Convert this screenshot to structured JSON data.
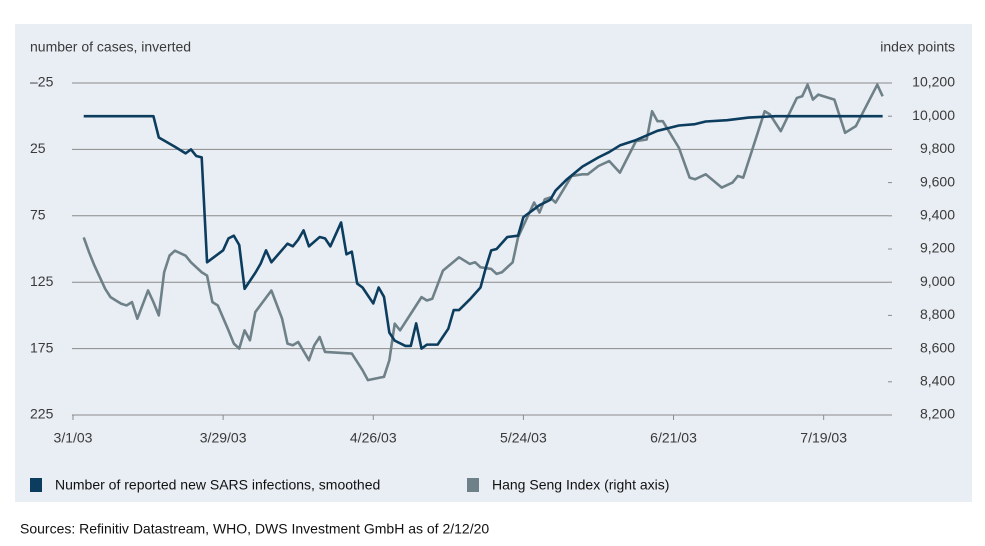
{
  "chart_data": {
    "type": "line",
    "y_label": "number of cases, inverted",
    "y2_label": "index points",
    "source": "Sources: Refinitiv Datastream, WHO, DWS Investment GmbH as of 2/12/20",
    "xlim": [
      "2003-03-01",
      "2003-07-31"
    ],
    "xticks": [
      {
        "value": "2003-03-01",
        "label": "3/1/03"
      },
      {
        "value": "2003-03-29",
        "label": "3/29/03"
      },
      {
        "value": "2003-04-26",
        "label": "4/26/03"
      },
      {
        "value": "2003-05-24",
        "label": "5/24/03"
      },
      {
        "value": "2003-06-21",
        "label": "6/21/03"
      },
      {
        "value": "2003-07-19",
        "label": "7/19/03"
      }
    ],
    "ylim": [
      225,
      -25
    ],
    "yticks": [
      {
        "value": -25,
        "label": "–25"
      },
      25,
      75,
      125,
      175,
      225
    ],
    "y2lim": [
      8200,
      10200
    ],
    "y2ticks": [
      {
        "value": 8200,
        "label": "8,200"
      },
      {
        "value": 8400,
        "label": "8,400"
      },
      {
        "value": 8600,
        "label": "8,600"
      },
      {
        "value": 8800,
        "label": "8,800"
      },
      {
        "value": 9000,
        "label": "9,000"
      },
      {
        "value": 9200,
        "label": "9,200"
      },
      {
        "value": 9400,
        "label": "9,400"
      },
      {
        "value": 9600,
        "label": "9,600"
      },
      {
        "value": 9800,
        "label": "9,800"
      },
      {
        "value": 10000,
        "label": "10,000"
      },
      {
        "value": 10200,
        "label": "10,200"
      }
    ],
    "grid": true,
    "series": [
      {
        "name": "Number of reported new SARS infections, smoothed",
        "color": "#0d3d5e",
        "x": [
          "2003-03-03",
          "2003-03-16",
          "2003-03-17",
          "2003-03-20",
          "2003-03-22",
          "2003-03-23",
          "2003-03-24",
          "2003-03-25",
          "2003-03-26",
          "2003-03-29",
          "2003-03-30",
          "2003-03-31",
          "2003-04-01",
          "2003-04-02",
          "2003-04-04",
          "2003-04-05",
          "2003-04-06",
          "2003-04-07",
          "2003-04-10",
          "2003-04-11",
          "2003-04-12",
          "2003-04-13",
          "2003-04-14",
          "2003-04-16",
          "2003-04-17",
          "2003-04-18",
          "2003-04-20",
          "2003-04-21",
          "2003-04-22",
          "2003-04-23",
          "2003-04-24",
          "2003-04-25",
          "2003-04-26",
          "2003-04-27",
          "2003-04-28",
          "2003-04-29",
          "2003-04-30",
          "2003-05-02",
          "2003-05-03",
          "2003-05-04",
          "2003-05-05",
          "2003-05-06",
          "2003-05-08",
          "2003-05-09",
          "2003-05-10",
          "2003-05-11",
          "2003-05-12",
          "2003-05-14",
          "2003-05-16",
          "2003-05-17",
          "2003-05-18",
          "2003-05-19",
          "2003-05-21",
          "2003-05-23",
          "2003-05-24",
          "2003-05-26",
          "2003-05-27",
          "2003-05-29",
          "2003-05-30",
          "2003-06-01",
          "2003-06-04",
          "2003-06-07",
          "2003-06-09",
          "2003-06-11",
          "2003-06-14",
          "2003-06-18",
          "2003-06-22",
          "2003-06-25",
          "2003-06-27",
          "2003-07-01",
          "2003-07-05",
          "2003-07-10",
          "2003-07-30"
        ],
        "values": [
          0,
          0,
          16,
          23,
          28,
          25,
          30,
          31,
          110,
          101,
          92,
          90,
          97,
          130,
          118,
          111,
          101,
          110,
          96,
          98,
          93,
          86,
          98,
          91,
          92,
          98,
          80,
          104,
          102,
          126,
          129,
          135,
          141,
          129,
          136,
          163,
          169,
          173,
          173,
          156,
          175,
          172,
          172,
          166,
          160,
          146,
          146,
          138,
          129,
          114,
          101,
          100,
          91,
          90,
          76,
          70,
          67,
          63,
          56,
          48,
          38,
          31,
          27,
          22,
          18,
          11,
          7,
          6,
          4,
          3,
          1,
          0,
          0
        ]
      },
      {
        "name": "Hang Seng Index (right axis)",
        "color": "#6f8188",
        "axis": "y2",
        "x": [
          "2003-03-03",
          "2003-03-04",
          "2003-03-05",
          "2003-03-07",
          "2003-03-08",
          "2003-03-09",
          "2003-03-10",
          "2003-03-11",
          "2003-03-12",
          "2003-03-13",
          "2003-03-15",
          "2003-03-16",
          "2003-03-17",
          "2003-03-18",
          "2003-03-19",
          "2003-03-20",
          "2003-03-22",
          "2003-03-23",
          "2003-03-25",
          "2003-03-26",
          "2003-03-27",
          "2003-03-28",
          "2003-03-30",
          "2003-03-31",
          "2003-04-01",
          "2003-04-02",
          "2003-04-03",
          "2003-04-04",
          "2003-04-07",
          "2003-04-09",
          "2003-04-10",
          "2003-04-11",
          "2003-04-12",
          "2003-04-14",
          "2003-04-15",
          "2003-04-16",
          "2003-04-17",
          "2003-04-22",
          "2003-04-24",
          "2003-04-25",
          "2003-04-28",
          "2003-04-29",
          "2003-04-30",
          "2003-05-01",
          "2003-05-03",
          "2003-05-05",
          "2003-05-06",
          "2003-05-07",
          "2003-05-09",
          "2003-05-12",
          "2003-05-14",
          "2003-05-15",
          "2003-05-16",
          "2003-05-18",
          "2003-05-19",
          "2003-05-20",
          "2003-05-22",
          "2003-05-23",
          "2003-05-25",
          "2003-05-26",
          "2003-05-27",
          "2003-05-28",
          "2003-05-29",
          "2003-05-30",
          "2003-06-02",
          "2003-06-04",
          "2003-06-05",
          "2003-06-07",
          "2003-06-09",
          "2003-06-11",
          "2003-06-14",
          "2003-06-16",
          "2003-06-17",
          "2003-06-18",
          "2003-06-19",
          "2003-06-22",
          "2003-06-24",
          "2003-06-25",
          "2003-06-27",
          "2003-06-30",
          "2003-07-02",
          "2003-07-03",
          "2003-07-04",
          "2003-07-08",
          "2003-07-09",
          "2003-07-11",
          "2003-07-14",
          "2003-07-15",
          "2003-07-16",
          "2003-07-17",
          "2003-07-18",
          "2003-07-21",
          "2003-07-23",
          "2003-07-25",
          "2003-07-29",
          "2003-07-30"
        ],
        "values": [
          9270,
          9180,
          9100,
          8960,
          8910,
          8890,
          8870,
          8860,
          8880,
          8780,
          8950,
          8880,
          8800,
          9060,
          9160,
          9190,
          9160,
          9120,
          9060,
          9040,
          8880,
          8860,
          8710,
          8630,
          8600,
          8710,
          8650,
          8820,
          8950,
          8780,
          8630,
          8620,
          8640,
          8530,
          8620,
          8670,
          8580,
          8570,
          8470,
          8410,
          8430,
          8530,
          8750,
          8710,
          8810,
          8910,
          8890,
          8900,
          9070,
          9150,
          9110,
          9120,
          9090,
          9080,
          9050,
          9060,
          9120,
          9270,
          9410,
          9480,
          9420,
          9500,
          9510,
          9480,
          9640,
          9650,
          9650,
          9700,
          9730,
          9660,
          9850,
          9860,
          10030,
          9970,
          9970,
          9810,
          9630,
          9620,
          9650,
          9570,
          9600,
          9640,
          9630,
          10030,
          10010,
          9910,
          10110,
          10120,
          10190,
          10100,
          10130,
          10100,
          9900,
          9940,
          10190,
          10120
        ]
      }
    ]
  }
}
